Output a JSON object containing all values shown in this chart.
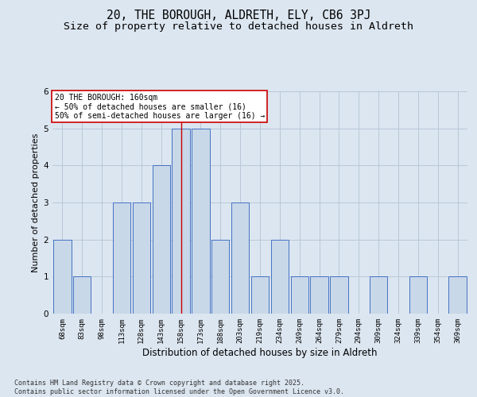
{
  "title": "20, THE BOROUGH, ALDRETH, ELY, CB6 3PJ",
  "subtitle": "Size of property relative to detached houses in Aldreth",
  "xlabel": "Distribution of detached houses by size in Aldreth",
  "ylabel": "Number of detached properties",
  "categories": [
    "68sqm",
    "83sqm",
    "98sqm",
    "113sqm",
    "128sqm",
    "143sqm",
    "158sqm",
    "173sqm",
    "188sqm",
    "203sqm",
    "219sqm",
    "234sqm",
    "249sqm",
    "264sqm",
    "279sqm",
    "294sqm",
    "309sqm",
    "324sqm",
    "339sqm",
    "354sqm",
    "369sqm"
  ],
  "values": [
    2,
    1,
    0,
    3,
    3,
    4,
    5,
    5,
    2,
    3,
    1,
    2,
    1,
    1,
    1,
    0,
    1,
    0,
    1,
    0,
    1
  ],
  "bar_color": "#c8d8e8",
  "bar_edge_color": "#4472c4",
  "highlight_index": 6,
  "highlight_line_color": "#cc0000",
  "annotation_text": "20 THE BOROUGH: 160sqm\n← 50% of detached houses are smaller (16)\n50% of semi-detached houses are larger (16) →",
  "annotation_box_color": "#ffffff",
  "annotation_box_edge_color": "#cc0000",
  "background_color": "#dce6f0",
  "ylim": [
    0,
    6
  ],
  "yticks": [
    0,
    1,
    2,
    3,
    4,
    5,
    6
  ],
  "footer": "Contains HM Land Registry data © Crown copyright and database right 2025.\nContains public sector information licensed under the Open Government Licence v3.0.",
  "title_fontsize": 10.5,
  "subtitle_fontsize": 9.5,
  "axis_label_fontsize": 8,
  "tick_fontsize": 6.5,
  "ann_fontsize": 7,
  "footer_fontsize": 6
}
